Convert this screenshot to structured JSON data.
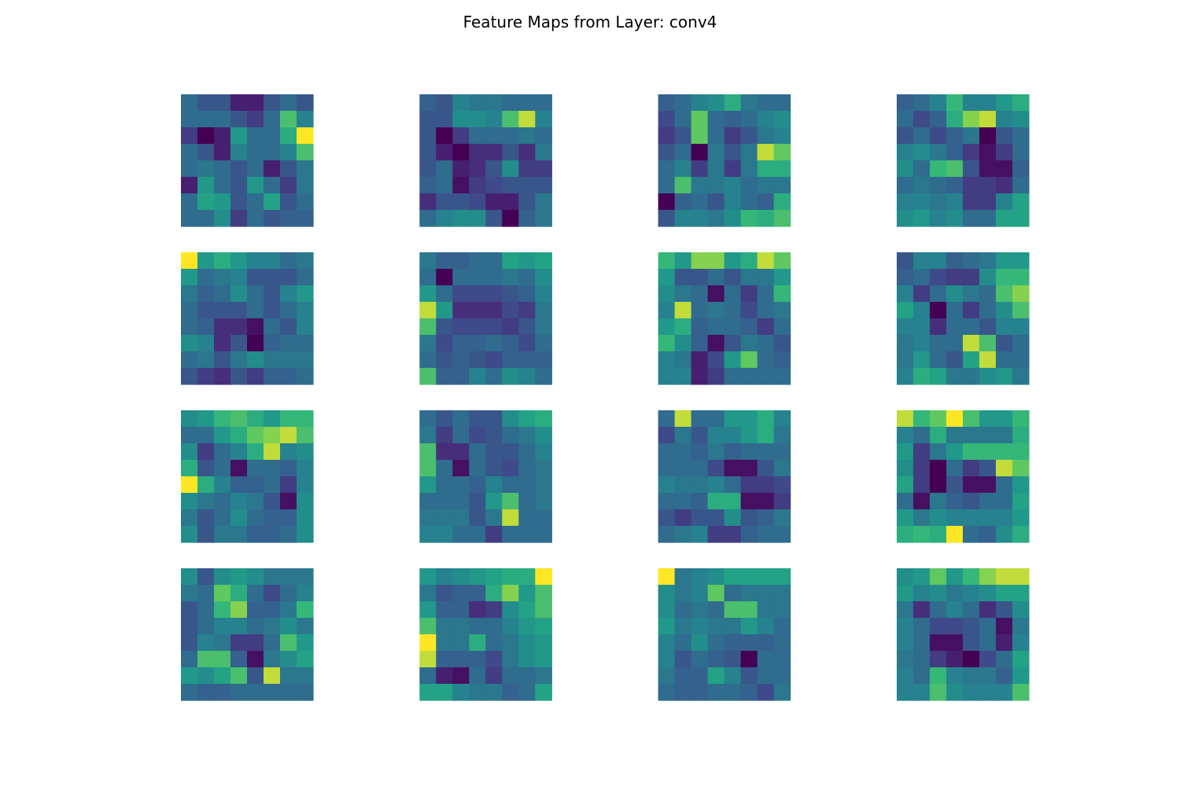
{
  "title": "Feature Maps from Layer: conv4",
  "chart_data": {
    "type": "heatmap",
    "title": "Feature Maps from Layer: conv4",
    "colormap": "viridis",
    "grid": false,
    "axes": "off",
    "layout": {
      "rows": 4,
      "cols": 4
    },
    "value_range": [
      0,
      1
    ],
    "maps": [
      [
        [
          0.4,
          0.3,
          0.3,
          0.1,
          0.1,
          0.3,
          0.4,
          0.3
        ],
        [
          0.4,
          0.4,
          0.4,
          0.3,
          0.2,
          0.4,
          0.8,
          0.5
        ],
        [
          0.2,
          0.0,
          0.1,
          0.6,
          0.4,
          0.4,
          0.7,
          1.0
        ],
        [
          0.4,
          0.3,
          0.1,
          0.5,
          0.4,
          0.4,
          0.5,
          0.8
        ],
        [
          0.4,
          0.45,
          0.4,
          0.3,
          0.4,
          0.1,
          0.3,
          0.45
        ],
        [
          0.1,
          0.6,
          0.4,
          0.3,
          0.6,
          0.4,
          0.2,
          0.45
        ],
        [
          0.4,
          0.65,
          0.6,
          0.3,
          0.4,
          0.65,
          0.3,
          0.4
        ],
        [
          0.4,
          0.4,
          0.55,
          0.2,
          0.4,
          0.3,
          0.35,
          0.35
        ]
      ],
      [
        [
          0.35,
          0.3,
          0.5,
          0.45,
          0.45,
          0.4,
          0.4,
          0.4
        ],
        [
          0.3,
          0.3,
          0.55,
          0.55,
          0.5,
          0.8,
          0.95,
          0.5
        ],
        [
          0.3,
          0.0,
          0.2,
          0.4,
          0.4,
          0.4,
          0.45,
          0.4
        ],
        [
          0.3,
          0.1,
          0.0,
          0.15,
          0.15,
          0.3,
          0.15,
          0.45
        ],
        [
          0.3,
          0.4,
          0.1,
          0.15,
          0.3,
          0.55,
          0.2,
          0.2
        ],
        [
          0.35,
          0.4,
          0.05,
          0.2,
          0.25,
          0.3,
          0.3,
          0.3
        ],
        [
          0.15,
          0.3,
          0.3,
          0.25,
          0.1,
          0.1,
          0.3,
          0.45
        ],
        [
          0.4,
          0.5,
          0.55,
          0.55,
          0.3,
          0.0,
          0.35,
          0.45
        ]
      ],
      [
        [
          0.35,
          0.4,
          0.5,
          0.55,
          0.7,
          0.45,
          0.4,
          0.4
        ],
        [
          0.25,
          0.4,
          0.85,
          0.4,
          0.35,
          0.4,
          0.5,
          0.55
        ],
        [
          0.2,
          0.3,
          0.85,
          0.4,
          0.2,
          0.3,
          0.45,
          0.5
        ],
        [
          0.3,
          0.4,
          0.0,
          0.45,
          0.3,
          0.45,
          0.95,
          0.85
        ],
        [
          0.4,
          0.5,
          0.2,
          0.45,
          0.2,
          0.45,
          0.7,
          0.7
        ],
        [
          0.4,
          0.8,
          0.45,
          0.45,
          0.5,
          0.4,
          0.45,
          0.45
        ],
        [
          0.0,
          0.35,
          0.4,
          0.3,
          0.5,
          0.4,
          0.35,
          0.7
        ],
        [
          0.3,
          0.5,
          0.5,
          0.45,
          0.55,
          0.75,
          0.7,
          0.8
        ]
      ],
      [
        [
          0.35,
          0.4,
          0.5,
          0.75,
          0.5,
          0.5,
          0.6,
          0.7
        ],
        [
          0.4,
          0.25,
          0.35,
          0.7,
          0.9,
          0.95,
          0.5,
          0.55
        ],
        [
          0.3,
          0.4,
          0.25,
          0.35,
          0.45,
          0.0,
          0.3,
          0.4
        ],
        [
          0.5,
          0.55,
          0.45,
          0.35,
          0.2,
          0.05,
          0.2,
          0.4
        ],
        [
          0.55,
          0.4,
          0.75,
          0.8,
          0.3,
          0.05,
          0.05,
          0.35
        ],
        [
          0.4,
          0.45,
          0.4,
          0.35,
          0.2,
          0.2,
          0.15,
          0.4
        ],
        [
          0.5,
          0.5,
          0.45,
          0.5,
          0.2,
          0.2,
          0.5,
          0.65
        ],
        [
          0.55,
          0.6,
          0.5,
          0.55,
          0.4,
          0.4,
          0.65,
          0.65
        ]
      ],
      [
        [
          1.0,
          0.6,
          0.7,
          0.6,
          0.5,
          0.5,
          0.4,
          0.45
        ],
        [
          0.6,
          0.4,
          0.45,
          0.5,
          0.3,
          0.3,
          0.3,
          0.4
        ],
        [
          0.45,
          0.35,
          0.4,
          0.55,
          0.4,
          0.3,
          0.5,
          0.6
        ],
        [
          0.4,
          0.3,
          0.3,
          0.3,
          0.4,
          0.3,
          0.4,
          0.5
        ],
        [
          0.4,
          0.35,
          0.15,
          0.15,
          0.05,
          0.4,
          0.3,
          0.5
        ],
        [
          0.55,
          0.5,
          0.15,
          0.3,
          0.0,
          0.35,
          0.4,
          0.4
        ],
        [
          0.4,
          0.45,
          0.3,
          0.45,
          0.55,
          0.45,
          0.45,
          0.45
        ],
        [
          0.3,
          0.2,
          0.15,
          0.3,
          0.2,
          0.35,
          0.35,
          0.4
        ]
      ],
      [
        [
          0.45,
          0.35,
          0.35,
          0.4,
          0.4,
          0.65,
          0.6,
          0.65
        ],
        [
          0.4,
          0.0,
          0.4,
          0.4,
          0.4,
          0.45,
          0.4,
          0.55
        ],
        [
          0.6,
          0.4,
          0.25,
          0.25,
          0.25,
          0.3,
          0.35,
          0.5
        ],
        [
          0.95,
          0.6,
          0.15,
          0.15,
          0.15,
          0.25,
          0.2,
          0.45
        ],
        [
          0.8,
          0.3,
          0.25,
          0.25,
          0.25,
          0.2,
          0.3,
          0.45
        ],
        [
          0.45,
          0.25,
          0.35,
          0.35,
          0.4,
          0.35,
          0.25,
          0.4
        ],
        [
          0.4,
          0.3,
          0.35,
          0.3,
          0.25,
          0.35,
          0.35,
          0.35
        ],
        [
          0.8,
          0.35,
          0.35,
          0.5,
          0.4,
          0.55,
          0.5,
          0.4
        ]
      ],
      [
        [
          0.75,
          0.6,
          0.9,
          0.9,
          0.6,
          0.7,
          0.95,
          0.85
        ],
        [
          0.6,
          0.3,
          0.3,
          0.4,
          0.3,
          0.45,
          0.45,
          0.6
        ],
        [
          0.55,
          0.45,
          0.4,
          0.05,
          0.4,
          0.2,
          0.4,
          0.75
        ],
        [
          0.5,
          0.95,
          0.4,
          0.45,
          0.4,
          0.25,
          0.4,
          0.45
        ],
        [
          0.6,
          0.7,
          0.35,
          0.4,
          0.4,
          0.35,
          0.2,
          0.4
        ],
        [
          0.75,
          0.55,
          0.35,
          0.05,
          0.3,
          0.45,
          0.4,
          0.3
        ],
        [
          0.5,
          0.45,
          0.1,
          0.25,
          0.6,
          0.85,
          0.4,
          0.35
        ],
        [
          0.5,
          0.5,
          0.1,
          0.2,
          0.4,
          0.4,
          0.4,
          0.4
        ]
      ],
      [
        [
          0.3,
          0.5,
          0.5,
          0.35,
          0.4,
          0.45,
          0.6,
          0.6
        ],
        [
          0.35,
          0.4,
          0.25,
          0.2,
          0.2,
          0.55,
          0.75,
          0.75
        ],
        [
          0.5,
          0.2,
          0.4,
          0.55,
          0.45,
          0.4,
          0.8,
          0.9
        ],
        [
          0.65,
          0.5,
          0.0,
          0.4,
          0.2,
          0.4,
          0.55,
          0.8
        ],
        [
          0.5,
          0.5,
          0.15,
          0.4,
          0.4,
          0.3,
          0.5,
          0.5
        ],
        [
          0.45,
          0.5,
          0.4,
          0.4,
          0.95,
          0.8,
          0.3,
          0.4
        ],
        [
          0.45,
          0.6,
          0.4,
          0.3,
          0.65,
          0.95,
          0.4,
          0.4
        ],
        [
          0.5,
          0.7,
          0.65,
          0.45,
          0.45,
          0.55,
          0.6,
          0.45
        ]
      ],
      [
        [
          0.55,
          0.6,
          0.75,
          0.8,
          0.7,
          0.6,
          0.75,
          0.75
        ],
        [
          0.4,
          0.4,
          0.6,
          0.7,
          0.85,
          0.9,
          0.95,
          0.8
        ],
        [
          0.55,
          0.2,
          0.4,
          0.5,
          0.7,
          0.95,
          0.5,
          0.55
        ],
        [
          0.7,
          0.3,
          0.4,
          0.05,
          0.4,
          0.4,
          0.35,
          0.5
        ],
        [
          1.0,
          0.7,
          0.5,
          0.35,
          0.35,
          0.4,
          0.2,
          0.5
        ],
        [
          0.55,
          0.45,
          0.4,
          0.5,
          0.45,
          0.3,
          0.05,
          0.55
        ],
        [
          0.45,
          0.3,
          0.4,
          0.55,
          0.4,
          0.35,
          0.35,
          0.55
        ],
        [
          0.55,
          0.3,
          0.45,
          0.45,
          0.35,
          0.35,
          0.4,
          0.55
        ]
      ],
      [
        [
          0.4,
          0.3,
          0.4,
          0.3,
          0.3,
          0.55,
          0.65,
          0.7
        ],
        [
          0.45,
          0.2,
          0.4,
          0.25,
          0.3,
          0.4,
          0.45,
          0.55
        ],
        [
          0.8,
          0.15,
          0.15,
          0.4,
          0.3,
          0.3,
          0.4,
          0.5
        ],
        [
          0.8,
          0.4,
          0.05,
          0.4,
          0.3,
          0.25,
          0.4,
          0.45
        ],
        [
          0.6,
          0.4,
          0.4,
          0.35,
          0.5,
          0.4,
          0.4,
          0.45
        ],
        [
          0.4,
          0.4,
          0.4,
          0.3,
          0.6,
          0.8,
          0.4,
          0.45
        ],
        [
          0.45,
          0.45,
          0.45,
          0.3,
          0.45,
          0.95,
          0.4,
          0.4
        ],
        [
          0.5,
          0.5,
          0.4,
          0.4,
          0.2,
          0.4,
          0.4,
          0.4
        ]
      ],
      [
        [
          0.4,
          0.95,
          0.4,
          0.4,
          0.6,
          0.6,
          0.7,
          0.5
        ],
        [
          0.25,
          0.45,
          0.3,
          0.5,
          0.5,
          0.6,
          0.7,
          0.45
        ],
        [
          0.4,
          0.4,
          0.35,
          0.45,
          0.35,
          0.4,
          0.4,
          0.4
        ],
        [
          0.4,
          0.4,
          0.4,
          0.25,
          0.05,
          0.05,
          0.3,
          0.45
        ],
        [
          0.5,
          0.45,
          0.45,
          0.5,
          0.4,
          0.2,
          0.2,
          0.25
        ],
        [
          0.4,
          0.4,
          0.35,
          0.7,
          0.7,
          0.05,
          0.05,
          0.2
        ],
        [
          0.3,
          0.2,
          0.3,
          0.3,
          0.55,
          0.3,
          0.35,
          0.45
        ],
        [
          0.4,
          0.45,
          0.5,
          0.2,
          0.2,
          0.35,
          0.4,
          0.4
        ]
      ],
      [
        [
          0.95,
          0.75,
          0.85,
          1.0,
          0.8,
          0.6,
          0.6,
          0.75
        ],
        [
          0.5,
          0.4,
          0.7,
          0.45,
          0.45,
          0.45,
          0.45,
          0.7
        ],
        [
          0.6,
          0.2,
          0.45,
          0.6,
          0.75,
          0.75,
          0.75,
          0.75
        ],
        [
          0.55,
          0.2,
          0.0,
          0.4,
          0.2,
          0.3,
          0.95,
          0.85
        ],
        [
          0.65,
          0.2,
          0.0,
          0.3,
          0.05,
          0.05,
          0.4,
          0.6
        ],
        [
          0.4,
          0.05,
          0.45,
          0.35,
          0.3,
          0.4,
          0.4,
          0.65
        ],
        [
          0.6,
          0.45,
          0.55,
          0.5,
          0.5,
          0.5,
          0.5,
          0.6
        ],
        [
          0.7,
          0.75,
          0.7,
          1.0,
          0.4,
          0.35,
          0.55,
          0.7
        ]
      ],
      [
        [
          0.55,
          0.3,
          0.55,
          0.6,
          0.55,
          0.45,
          0.45,
          0.45
        ],
        [
          0.45,
          0.4,
          0.85,
          0.7,
          0.4,
          0.25,
          0.4,
          0.5
        ],
        [
          0.3,
          0.4,
          0.75,
          0.9,
          0.35,
          0.35,
          0.45,
          0.75
        ],
        [
          0.3,
          0.4,
          0.5,
          0.5,
          0.4,
          0.45,
          0.55,
          0.45
        ],
        [
          0.3,
          0.5,
          0.45,
          0.2,
          0.2,
          0.4,
          0.8,
          0.6
        ],
        [
          0.4,
          0.8,
          0.8,
          0.35,
          0.05,
          0.45,
          0.55,
          0.65
        ],
        [
          0.6,
          0.55,
          0.65,
          0.8,
          0.3,
          0.95,
          0.45,
          0.45
        ],
        [
          0.4,
          0.35,
          0.35,
          0.4,
          0.4,
          0.4,
          0.4,
          0.4
        ]
      ],
      [
        [
          0.6,
          0.5,
          0.55,
          0.6,
          0.65,
          0.7,
          0.7,
          1.0
        ],
        [
          0.45,
          0.3,
          0.35,
          0.35,
          0.7,
          0.9,
          0.6,
          0.8
        ],
        [
          0.6,
          0.35,
          0.35,
          0.15,
          0.2,
          0.55,
          0.65,
          0.8
        ],
        [
          0.8,
          0.45,
          0.45,
          0.4,
          0.4,
          0.5,
          0.6,
          0.65
        ],
        [
          1.0,
          0.45,
          0.45,
          0.7,
          0.4,
          0.45,
          0.55,
          0.6
        ],
        [
          0.95,
          0.35,
          0.35,
          0.35,
          0.25,
          0.45,
          0.55,
          0.6
        ],
        [
          0.4,
          0.1,
          0.05,
          0.4,
          0.2,
          0.4,
          0.4,
          0.45
        ],
        [
          0.65,
          0.65,
          0.5,
          0.45,
          0.45,
          0.35,
          0.4,
          0.65
        ]
      ],
      [
        [
          1.0,
          0.45,
          0.5,
          0.55,
          0.65,
          0.65,
          0.65,
          0.65
        ],
        [
          0.55,
          0.45,
          0.5,
          0.85,
          0.4,
          0.45,
          0.45,
          0.45
        ],
        [
          0.55,
          0.4,
          0.45,
          0.4,
          0.8,
          0.8,
          0.45,
          0.45
        ],
        [
          0.6,
          0.45,
          0.5,
          0.45,
          0.45,
          0.6,
          0.5,
          0.4
        ],
        [
          0.5,
          0.4,
          0.55,
          0.4,
          0.35,
          0.35,
          0.35,
          0.4
        ],
        [
          0.5,
          0.3,
          0.4,
          0.35,
          0.3,
          0.0,
          0.4,
          0.4
        ],
        [
          0.45,
          0.35,
          0.35,
          0.65,
          0.5,
          0.3,
          0.4,
          0.4
        ],
        [
          0.4,
          0.35,
          0.35,
          0.4,
          0.4,
          0.35,
          0.25,
          0.45
        ]
      ],
      [
        [
          0.55,
          0.6,
          0.85,
          0.6,
          0.75,
          0.9,
          0.95,
          0.95
        ],
        [
          0.6,
          0.5,
          0.55,
          0.45,
          0.5,
          0.55,
          0.65,
          0.65
        ],
        [
          0.45,
          0.15,
          0.4,
          0.5,
          0.4,
          0.15,
          0.3,
          0.55
        ],
        [
          0.5,
          0.4,
          0.25,
          0.25,
          0.3,
          0.4,
          0.05,
          0.45
        ],
        [
          0.5,
          0.4,
          0.05,
          0.05,
          0.3,
          0.4,
          0.1,
          0.5
        ],
        [
          0.45,
          0.4,
          0.2,
          0.1,
          0.0,
          0.25,
          0.4,
          0.65
        ],
        [
          0.5,
          0.4,
          0.75,
          0.5,
          0.45,
          0.45,
          0.35,
          0.6
        ],
        [
          0.5,
          0.5,
          0.8,
          0.55,
          0.5,
          0.5,
          0.5,
          0.8
        ]
      ]
    ]
  }
}
